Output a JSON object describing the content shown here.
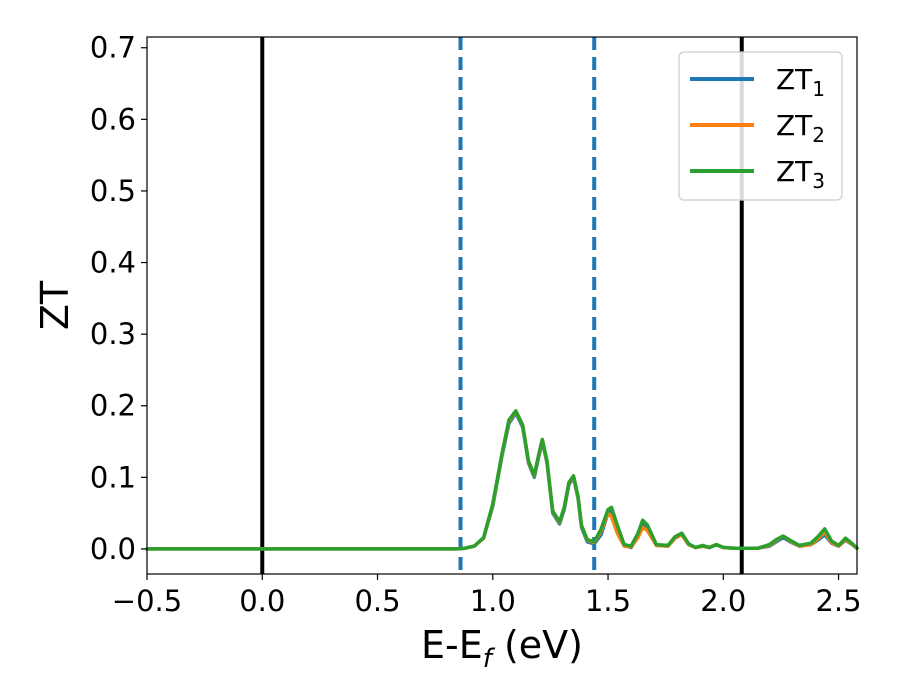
{
  "chart_data": {
    "type": "line",
    "xlabel": "E-E_f (eV)",
    "xlabel_parts": {
      "main": "E-E",
      "sub": "f",
      "tail": " (eV)"
    },
    "ylabel": "ZT",
    "xlim": [
      -0.5,
      2.58
    ],
    "ylim": [
      -0.035,
      0.715
    ],
    "x_ticks": [
      -0.5,
      0.0,
      0.5,
      1.0,
      1.5,
      2.0,
      2.5
    ],
    "x_tick_labels": [
      "−0.5",
      "0.0",
      "0.5",
      "1.0",
      "1.5",
      "2.0",
      "2.5"
    ],
    "y_ticks": [
      0.0,
      0.1,
      0.2,
      0.3,
      0.4,
      0.5,
      0.6,
      0.7
    ],
    "y_tick_labels": [
      "0.0",
      "0.1",
      "0.2",
      "0.3",
      "0.4",
      "0.5",
      "0.6",
      "0.7"
    ],
    "grid": false,
    "legend_position": "top-right",
    "vertical_lines": [
      {
        "x": 0.0,
        "style": "solid",
        "color": "#000000"
      },
      {
        "x": 2.08,
        "style": "solid",
        "color": "#000000"
      },
      {
        "x": 0.86,
        "style": "dashed",
        "color": "#1f77b4"
      },
      {
        "x": 1.44,
        "style": "dashed",
        "color": "#1f77b4"
      }
    ],
    "series": [
      {
        "name": "ZT_1",
        "label_main": "ZT",
        "label_sub": "1",
        "color": "#1f77b4",
        "x": [
          -0.5,
          0.0,
          0.5,
          0.84,
          0.88,
          0.92,
          0.96,
          1.0,
          1.04,
          1.07,
          1.1,
          1.13,
          1.155,
          1.18,
          1.2,
          1.215,
          1.235,
          1.26,
          1.29,
          1.31,
          1.33,
          1.35,
          1.37,
          1.385,
          1.41,
          1.44,
          1.47,
          1.5,
          1.515,
          1.54,
          1.57,
          1.6,
          1.63,
          1.65,
          1.67,
          1.71,
          1.76,
          1.79,
          1.82,
          1.85,
          1.88,
          1.91,
          1.94,
          1.97,
          2.0,
          2.05,
          2.1,
          2.15,
          2.2,
          2.23,
          2.26,
          2.29,
          2.33,
          2.38,
          2.41,
          2.44,
          2.47,
          2.5,
          2.53,
          2.56,
          2.58
        ],
        "y": [
          0.0,
          0.0,
          0.0,
          0.0,
          0.001,
          0.004,
          0.015,
          0.06,
          0.13,
          0.175,
          0.19,
          0.17,
          0.12,
          0.1,
          0.13,
          0.15,
          0.12,
          0.05,
          0.035,
          0.055,
          0.09,
          0.1,
          0.07,
          0.03,
          0.01,
          0.007,
          0.02,
          0.05,
          0.055,
          0.03,
          0.005,
          0.002,
          0.018,
          0.035,
          0.03,
          0.005,
          0.004,
          0.015,
          0.02,
          0.006,
          0.002,
          0.004,
          0.002,
          0.006,
          0.002,
          0.001,
          0.001,
          0.001,
          0.004,
          0.01,
          0.016,
          0.01,
          0.004,
          0.006,
          0.012,
          0.02,
          0.008,
          0.004,
          0.012,
          0.006,
          0.001
        ]
      },
      {
        "name": "ZT_2",
        "label_main": "ZT",
        "label_sub": "2",
        "color": "#ff7f0e",
        "x": [
          -0.5,
          0.0,
          0.5,
          0.84,
          0.88,
          0.92,
          0.96,
          1.0,
          1.04,
          1.07,
          1.1,
          1.13,
          1.155,
          1.18,
          1.2,
          1.215,
          1.235,
          1.26,
          1.29,
          1.31,
          1.33,
          1.35,
          1.37,
          1.385,
          1.41,
          1.44,
          1.47,
          1.5,
          1.515,
          1.54,
          1.57,
          1.6,
          1.63,
          1.65,
          1.67,
          1.71,
          1.76,
          1.79,
          1.82,
          1.85,
          1.88,
          1.91,
          1.94,
          1.97,
          2.0,
          2.05,
          2.1,
          2.15,
          2.2,
          2.23,
          2.26,
          2.29,
          2.33,
          2.38,
          2.41,
          2.44,
          2.47,
          2.5,
          2.53,
          2.56,
          2.58
        ],
        "y": [
          0.0,
          0.0,
          0.0,
          0.0,
          0.001,
          0.004,
          0.015,
          0.062,
          0.132,
          0.178,
          0.192,
          0.172,
          0.122,
          0.102,
          0.132,
          0.152,
          0.122,
          0.052,
          0.037,
          0.057,
          0.092,
          0.101,
          0.072,
          0.032,
          0.012,
          0.009,
          0.025,
          0.05,
          0.045,
          0.022,
          0.004,
          0.003,
          0.016,
          0.03,
          0.026,
          0.005,
          0.004,
          0.015,
          0.02,
          0.006,
          0.002,
          0.004,
          0.002,
          0.006,
          0.002,
          0.001,
          0.001,
          0.001,
          0.005,
          0.012,
          0.018,
          0.011,
          0.004,
          0.006,
          0.014,
          0.024,
          0.009,
          0.004,
          0.013,
          0.006,
          0.001
        ]
      },
      {
        "name": "ZT_3",
        "label_main": "ZT",
        "label_sub": "3",
        "color": "#2ca02c",
        "x": [
          -0.5,
          0.0,
          0.5,
          0.84,
          0.88,
          0.92,
          0.96,
          1.0,
          1.04,
          1.07,
          1.1,
          1.13,
          1.155,
          1.18,
          1.2,
          1.215,
          1.235,
          1.26,
          1.29,
          1.31,
          1.33,
          1.35,
          1.37,
          1.385,
          1.41,
          1.44,
          1.47,
          1.5,
          1.515,
          1.54,
          1.57,
          1.6,
          1.63,
          1.65,
          1.67,
          1.71,
          1.76,
          1.79,
          1.82,
          1.85,
          1.88,
          1.91,
          1.94,
          1.97,
          2.0,
          2.05,
          2.1,
          2.15,
          2.2,
          2.23,
          2.26,
          2.29,
          2.33,
          2.38,
          2.41,
          2.44,
          2.47,
          2.5,
          2.53,
          2.56,
          2.58
        ],
        "y": [
          0.0,
          0.0,
          0.0,
          0.0,
          0.001,
          0.004,
          0.016,
          0.063,
          0.133,
          0.18,
          0.193,
          0.173,
          0.123,
          0.103,
          0.133,
          0.153,
          0.123,
          0.053,
          0.038,
          0.058,
          0.093,
          0.102,
          0.073,
          0.033,
          0.013,
          0.01,
          0.028,
          0.055,
          0.058,
          0.033,
          0.006,
          0.004,
          0.022,
          0.04,
          0.034,
          0.006,
          0.005,
          0.017,
          0.022,
          0.007,
          0.002,
          0.005,
          0.002,
          0.006,
          0.002,
          0.001,
          0.001,
          0.001,
          0.006,
          0.013,
          0.018,
          0.012,
          0.005,
          0.008,
          0.017,
          0.028,
          0.011,
          0.005,
          0.015,
          0.007,
          0.001
        ]
      }
    ]
  }
}
